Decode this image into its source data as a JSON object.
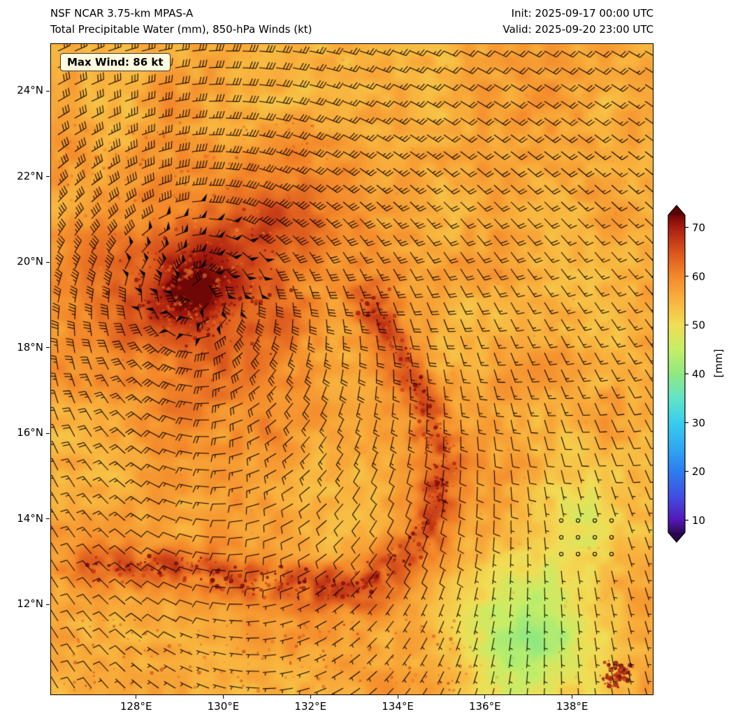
{
  "header": {
    "model_line": "NSF NCAR 3.75-km MPAS-A",
    "product_line": "Total Precipitable Water (mm), 850-hPa Winds (kt)",
    "init_line": "Init: 2025-09-17 00:00 UTC",
    "valid_line": "Valid: 2025-09-20 23:00 UTC"
  },
  "annotation": {
    "max_wind_label": "Max Wind: 86 kt"
  },
  "chart_data": {
    "type": "heatmap",
    "title": "NSF NCAR 3.75-km MPAS-A — Total Precipitable Water (mm), 850-hPa Winds (kt)",
    "init_time": "2025-09-17 00:00 UTC",
    "valid_time": "2025-09-20 23:00 UTC",
    "background_color": "#ffffff",
    "wind_barb_color": "#000000",
    "x_axis": {
      "ticks": [
        128,
        130,
        132,
        134,
        136,
        138
      ],
      "tick_labels": [
        "128°E",
        "130°E",
        "132°E",
        "134°E",
        "136°E",
        "138°E"
      ],
      "range": [
        126.05,
        139.85
      ],
      "units": "degrees_east"
    },
    "y_axis": {
      "ticks": [
        24,
        22,
        20,
        18,
        16,
        14,
        12
      ],
      "tick_labels": [
        "24°N",
        "22°N",
        "20°N",
        "18°N",
        "16°N",
        "14°N",
        "12°N"
      ],
      "range": [
        9.9,
        25.1
      ],
      "units": "degrees_north"
    },
    "colorbar": {
      "label": "[mm]",
      "ticks": [
        10,
        20,
        30,
        40,
        50,
        60,
        70
      ],
      "range": [
        7.5,
        72.5
      ],
      "extend": "both",
      "under_color": "#2a0550",
      "over_color": "#5c0405",
      "stops": [
        {
          "value": 7.5,
          "color": "#2e0b59"
        },
        {
          "value": 10,
          "color": "#5217b8"
        },
        {
          "value": 15,
          "color": "#414fe2"
        },
        {
          "value": 20,
          "color": "#2d7df0"
        },
        {
          "value": 25,
          "color": "#2fa9f2"
        },
        {
          "value": 30,
          "color": "#38cdee"
        },
        {
          "value": 35,
          "color": "#62e4c8"
        },
        {
          "value": 40,
          "color": "#90e981"
        },
        {
          "value": 45,
          "color": "#c6ee67"
        },
        {
          "value": 50,
          "color": "#f2dd55"
        },
        {
          "value": 55,
          "color": "#f9b33e"
        },
        {
          "value": 60,
          "color": "#f4882a"
        },
        {
          "value": 65,
          "color": "#d9531c"
        },
        {
          "value": 70,
          "color": "#a81c0f"
        },
        {
          "value": 72.5,
          "color": "#6f0707"
        }
      ]
    },
    "field": {
      "name": "total_precipitable_water_mm",
      "base_mm": 56,
      "noise_mm": 2.2,
      "cyclone": {
        "lon": 129.4,
        "lat": 19.35,
        "core_mm": 74,
        "core_radius_deg": 0.9,
        "halo_mm_anom": 9,
        "halo_radius_deg": 2.7
      },
      "outer_band": {
        "lon": 131.4,
        "lat": 20.8,
        "anom_mm": 5,
        "rx_deg": 1.8,
        "ry_deg": 1.0
      },
      "rainband": {
        "path": [
          [
            133.3,
            19.2
          ],
          [
            134.4,
            17.3
          ],
          [
            135.1,
            15.4
          ],
          [
            134.7,
            13.7
          ],
          [
            133.2,
            12.4
          ],
          [
            131.0,
            12.5
          ],
          [
            128.6,
            12.9
          ],
          [
            127.0,
            12.8
          ]
        ],
        "width_deg": 0.55,
        "anom_mm": 8
      },
      "dry_region": {
        "lon": 137.1,
        "lat": 11.2,
        "anom_mm": -13,
        "rx_deg": 1.5,
        "ry_deg": 1.8
      },
      "secondary_dry": {
        "lon": 138.1,
        "lat": 14.3,
        "anom_mm": -6,
        "rx_deg": 1.1,
        "ry_deg": 1.5
      }
    },
    "wind": {
      "level": "850 hPa",
      "units": "kt",
      "max_wind_kt": 86,
      "vortex": {
        "lon": 129.4,
        "lat": 19.35,
        "vmax_kt": 86,
        "rmax_deg": 0.6,
        "decay_exponent": 0.65
      },
      "background": {
        "u_kt": -9,
        "v_kt": -2.5
      },
      "calm_region": {
        "lon": 138.3,
        "lat": 13.6,
        "radius_deg": 1.5
      },
      "barb_spacing_px": 24
    }
  }
}
